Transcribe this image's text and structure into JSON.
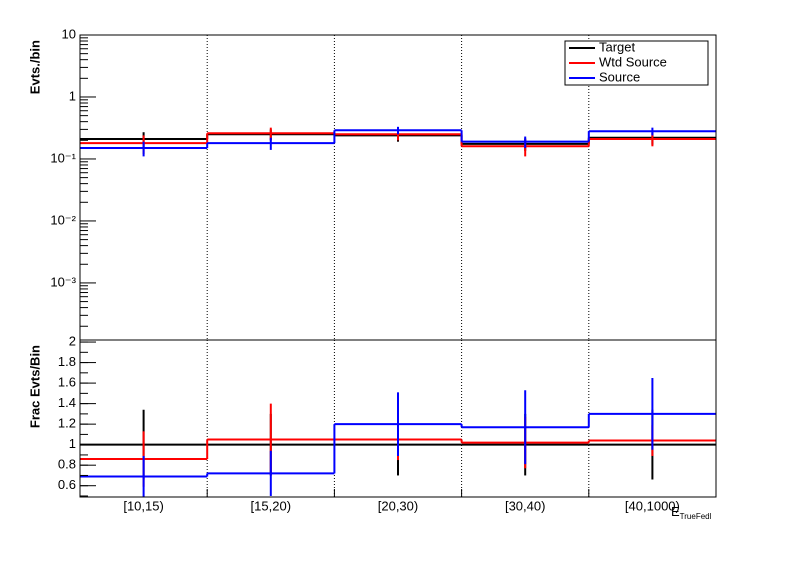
{
  "chart_data": [
    {
      "type": "step",
      "y_label": "Evts./bin",
      "log_y": true,
      "ylim": [
        0.00012,
        10
      ],
      "yticks": [
        {
          "value": 10,
          "label": "10"
        },
        {
          "value": 1,
          "label": "1"
        },
        {
          "value": 0.1,
          "label": "10⁻¹"
        },
        {
          "value": 0.01,
          "label": "10⁻²"
        },
        {
          "value": 0.001,
          "label": "10⁻³"
        }
      ],
      "xgrid": true,
      "legend": "top-right",
      "series": [
        {
          "name": "Target",
          "color": "#000000",
          "values": [
            0.21,
            0.25,
            0.24,
            0.175,
            0.22
          ],
          "errors": [
            0.06,
            0.05,
            0.05,
            0.04,
            0.05
          ]
        },
        {
          "name": "Wtd Source",
          "color": "#ff0000",
          "values": [
            0.18,
            0.26,
            0.25,
            0.16,
            0.21
          ],
          "errors": [
            0.06,
            0.06,
            0.05,
            0.05,
            0.05
          ]
        },
        {
          "name": "Source",
          "color": "#0000ff",
          "values": [
            0.15,
            0.18,
            0.29,
            0.19,
            0.28
          ],
          "errors": [
            0.04,
            0.04,
            0.04,
            0.04,
            0.04
          ]
        }
      ]
    },
    {
      "type": "step",
      "y_label": "Frac Evts/Bin",
      "x_label": "E",
      "x_label_sub": "TrueFedl",
      "categories": [
        "[10,15)",
        "[15,20)",
        "[20,30)",
        "[30,40)",
        "[40,1000)"
      ],
      "ylim": [
        0.49,
        2.02
      ],
      "yticks": [
        0.6,
        0.8,
        1,
        1.2,
        1.4,
        1.6,
        1.8,
        2
      ],
      "xgrid": true,
      "series": [
        {
          "color": "#000000",
          "values": [
            1,
            1,
            1,
            1,
            1
          ],
          "errors": [
            0.34,
            0.3,
            0.3,
            0.3,
            0.34
          ]
        },
        {
          "color": "#ff0000",
          "values": [
            0.86,
            1.05,
            1.05,
            1.02,
            1.04
          ],
          "errors": [
            0.27,
            0.35,
            0.2,
            0.25,
            0.15
          ]
        },
        {
          "color": "#0000ff",
          "values": [
            0.69,
            0.72,
            1.2,
            1.17,
            1.3
          ],
          "errors": [
            0.2,
            0.22,
            0.31,
            0.36,
            0.35
          ]
        }
      ]
    }
  ]
}
